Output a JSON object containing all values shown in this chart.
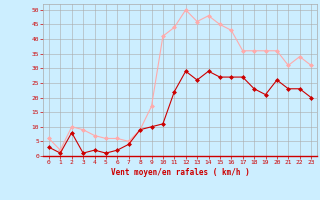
{
  "x": [
    0,
    1,
    2,
    3,
    4,
    5,
    6,
    7,
    8,
    9,
    10,
    11,
    12,
    13,
    14,
    15,
    16,
    17,
    18,
    19,
    20,
    21,
    22,
    23
  ],
  "wind_mean": [
    3,
    1,
    8,
    1,
    2,
    1,
    2,
    4,
    9,
    10,
    11,
    22,
    29,
    26,
    29,
    27,
    27,
    27,
    23,
    21,
    26,
    23,
    23,
    20
  ],
  "wind_gust": [
    6,
    2,
    10,
    9,
    7,
    6,
    6,
    5,
    9,
    17,
    41,
    44,
    50,
    46,
    48,
    45,
    43,
    36,
    36,
    36,
    36,
    31,
    34,
    31
  ],
  "mean_color": "#cc0000",
  "gust_color": "#ffaaaa",
  "bg_color": "#cceeff",
  "grid_color": "#aaaaaa",
  "xlabel": "Vent moyen/en rafales ( km/h )",
  "xlabel_color": "#cc0000",
  "tick_color": "#cc0000",
  "ylim": [
    0,
    52
  ],
  "yticks": [
    0,
    5,
    10,
    15,
    20,
    25,
    30,
    35,
    40,
    45,
    50
  ],
  "marker": "D",
  "marker_size": 2
}
